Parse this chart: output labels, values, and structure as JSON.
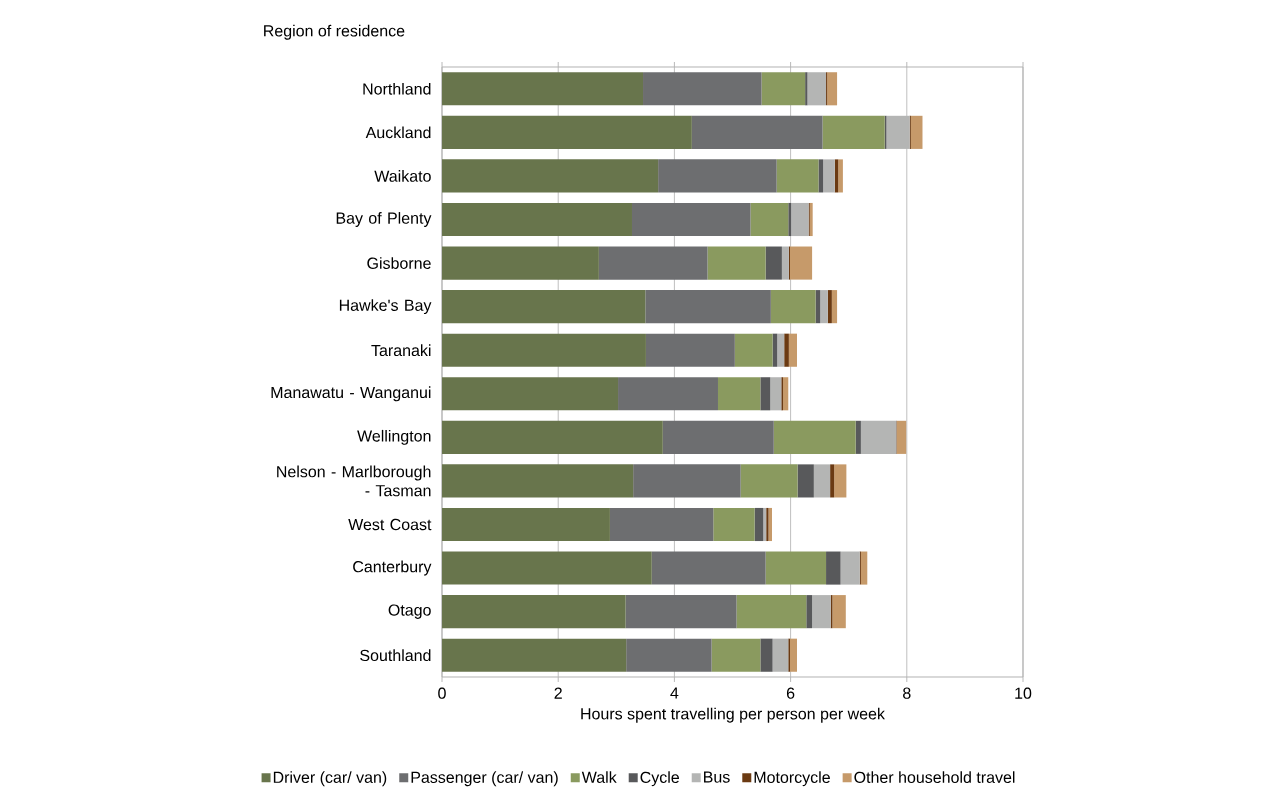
{
  "chart_data": {
    "type": "bar",
    "orientation": "horizontal",
    "stacked": true,
    "ylabel": "Region of residence",
    "xlabel": "Hours spent travelling per person per week",
    "categories": [
      "Northland",
      "Auckland",
      "Waikato",
      "Bay of Plenty",
      "Gisborne",
      "Hawke's Bay",
      "Taranaki",
      "Manawatu - Wanganui",
      "Wellington",
      "Nelson - Marlborough - Tasman",
      "West Coast",
      "Canterbury",
      "Otago",
      "Southland"
    ],
    "series": [
      {
        "name": "Driver (car/ van)",
        "color": "#68754c",
        "values": [
          3.46,
          4.3,
          3.72,
          3.27,
          2.7,
          3.5,
          3.51,
          3.03,
          3.8,
          3.29,
          2.89,
          3.61,
          3.16,
          3.17
        ]
      },
      {
        "name": "Passenger (car/ van)",
        "color": "#6d6e70",
        "values": [
          2.04,
          2.25,
          2.04,
          2.04,
          1.87,
          2.16,
          1.53,
          1.72,
          1.91,
          1.85,
          1.78,
          1.96,
          1.91,
          1.47
        ]
      },
      {
        "name": "Walk",
        "color": "#8a9a5f",
        "values": [
          0.75,
          1.07,
          0.72,
          0.65,
          1.0,
          0.77,
          0.65,
          0.73,
          1.41,
          0.98,
          0.71,
          1.04,
          1.2,
          0.84
        ]
      },
      {
        "name": "Cycle",
        "color": "#58595b",
        "values": [
          0.04,
          0.03,
          0.08,
          0.05,
          0.28,
          0.08,
          0.08,
          0.17,
          0.09,
          0.28,
          0.15,
          0.25,
          0.1,
          0.21
        ]
      },
      {
        "name": "Bus",
        "color": "#b4b5b4",
        "values": [
          0.32,
          0.4,
          0.2,
          0.3,
          0.12,
          0.13,
          0.12,
          0.19,
          0.61,
          0.28,
          0.05,
          0.33,
          0.32,
          0.27
        ]
      },
      {
        "name": "Motorcycle",
        "color": "#6b3a12",
        "values": [
          0.02,
          0.02,
          0.06,
          0.02,
          0.02,
          0.07,
          0.08,
          0.03,
          0.01,
          0.07,
          0.04,
          0.02,
          0.03,
          0.03
        ]
      },
      {
        "name": "Other household travel",
        "color": "#c69a6a",
        "values": [
          0.17,
          0.2,
          0.08,
          0.05,
          0.38,
          0.09,
          0.14,
          0.09,
          0.16,
          0.21,
          0.06,
          0.11,
          0.23,
          0.12
        ]
      }
    ],
    "xlim": [
      0,
      10
    ],
    "xticks": [
      0,
      2,
      4,
      6,
      8,
      10
    ],
    "grid": "x",
    "legend": "bottom"
  }
}
